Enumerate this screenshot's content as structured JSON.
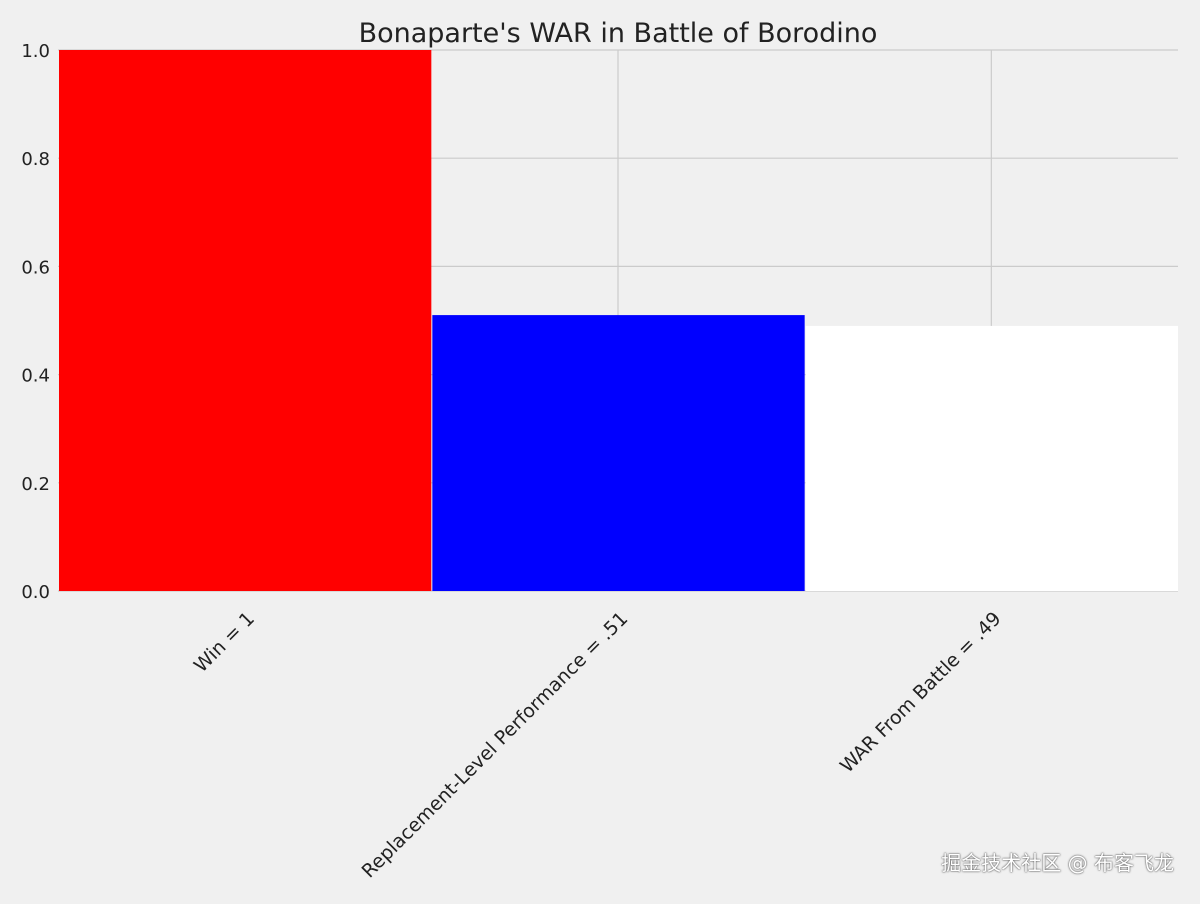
{
  "chart_data": {
    "type": "bar",
    "title": "Bonaparte's WAR in Battle of Borodino",
    "categories": [
      "Win = 1",
      "Replacement-Level Performance = .51",
      "WAR From Battle = .49"
    ],
    "values": [
      1.0,
      0.51,
      0.49
    ],
    "bar_colors": [
      "#ff0000",
      "#0000ff",
      "#ffffff"
    ],
    "ylim": [
      0,
      1.0
    ],
    "yticks": [
      0.0,
      0.2,
      0.4,
      0.6,
      0.8,
      1.0
    ],
    "ytick_labels": [
      "0.0",
      "0.2",
      "0.4",
      "0.6",
      "0.8",
      "1.0"
    ],
    "xlabel": "",
    "ylabel": "",
    "grid": true,
    "background": "#f0f0f0",
    "grid_color": "#cbcbcb"
  },
  "watermark": "掘金技术社区 @ 布客飞龙"
}
